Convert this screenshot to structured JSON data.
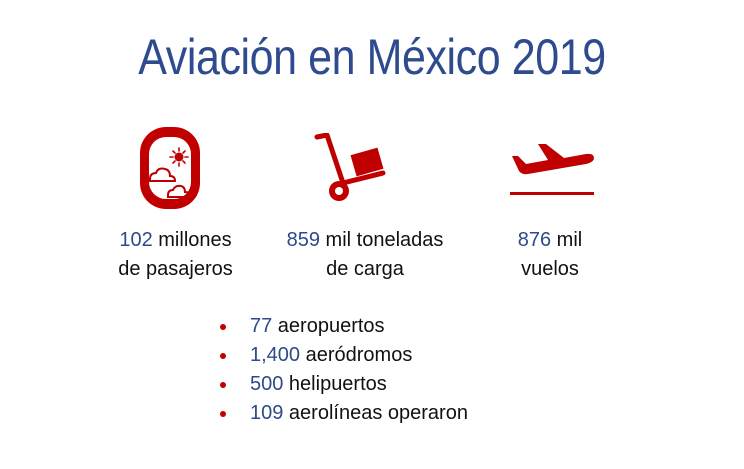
{
  "title": "Aviación en México 2019",
  "colors": {
    "title": "#2f4b8f",
    "number": "#2e4a8a",
    "icon": "#c00000",
    "bullet": "#c00000"
  },
  "stats": [
    {
      "icon": "airplane-window-icon",
      "number": "102",
      "line1_rest": " millones",
      "line2": "de pasajeros"
    },
    {
      "icon": "hand-truck-cargo-icon",
      "number": "859",
      "line1_rest": " mil toneladas",
      "line2": "de carga"
    },
    {
      "icon": "airplane-takeoff-icon",
      "number": "876",
      "line1_rest": " mil",
      "line2": "vuelos"
    }
  ],
  "bullets": [
    {
      "number": "77",
      "text": " aeropuertos"
    },
    {
      "number": "1,400",
      "text": " aeródromos"
    },
    {
      "number": "500",
      "text": " helipuertos"
    },
    {
      "number": "109",
      "text": " aerolíneas operaron"
    }
  ]
}
